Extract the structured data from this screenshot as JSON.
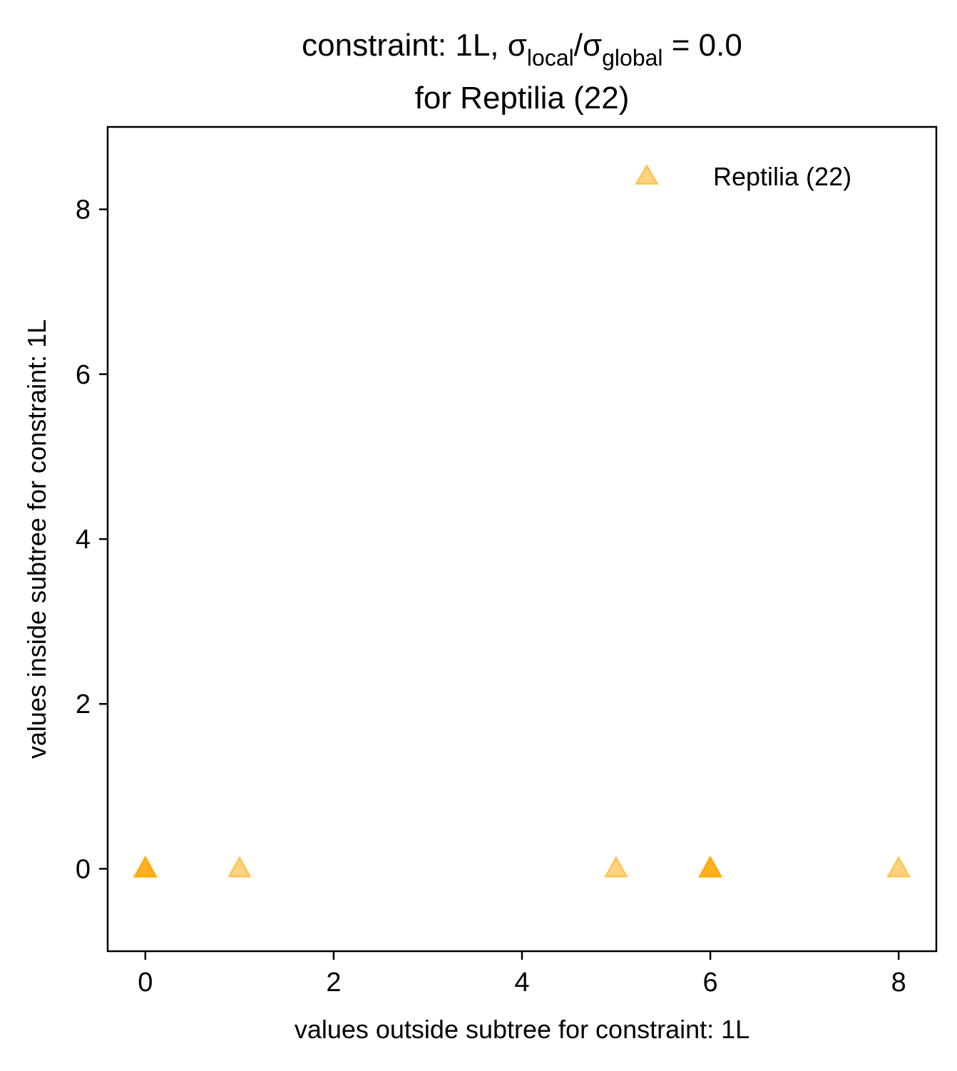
{
  "chart_data": {
    "type": "scatter",
    "title": {
      "prefix": "constraint: 1L, σ",
      "sub1": "local",
      "slash": "/σ",
      "sub2": "global",
      "suffix": " =  0.0",
      "line2": "for Reptilia (22)"
    },
    "xlabel": "values outside subtree for constraint: 1L",
    "ylabel": "values inside subtree for constraint: 1L",
    "xlim": [
      -0.4,
      8.4
    ],
    "ylim": [
      -1,
      9
    ],
    "xticks": [
      0,
      2,
      4,
      6,
      8
    ],
    "yticks": [
      0,
      2,
      4,
      6,
      8
    ],
    "grid": false,
    "legend_position": "top-right",
    "series": [
      {
        "name": "Reptilia (22)",
        "marker": "triangle-up",
        "color": "#FFA500",
        "alpha": 0.5,
        "points": [
          {
            "x": 0,
            "y": 0,
            "count": 3
          },
          {
            "x": 1,
            "y": 0,
            "count": 1
          },
          {
            "x": 5,
            "y": 0,
            "count": 1
          },
          {
            "x": 6,
            "y": 0,
            "count": 3
          },
          {
            "x": 8,
            "y": 0,
            "count": 1
          }
        ]
      }
    ]
  }
}
